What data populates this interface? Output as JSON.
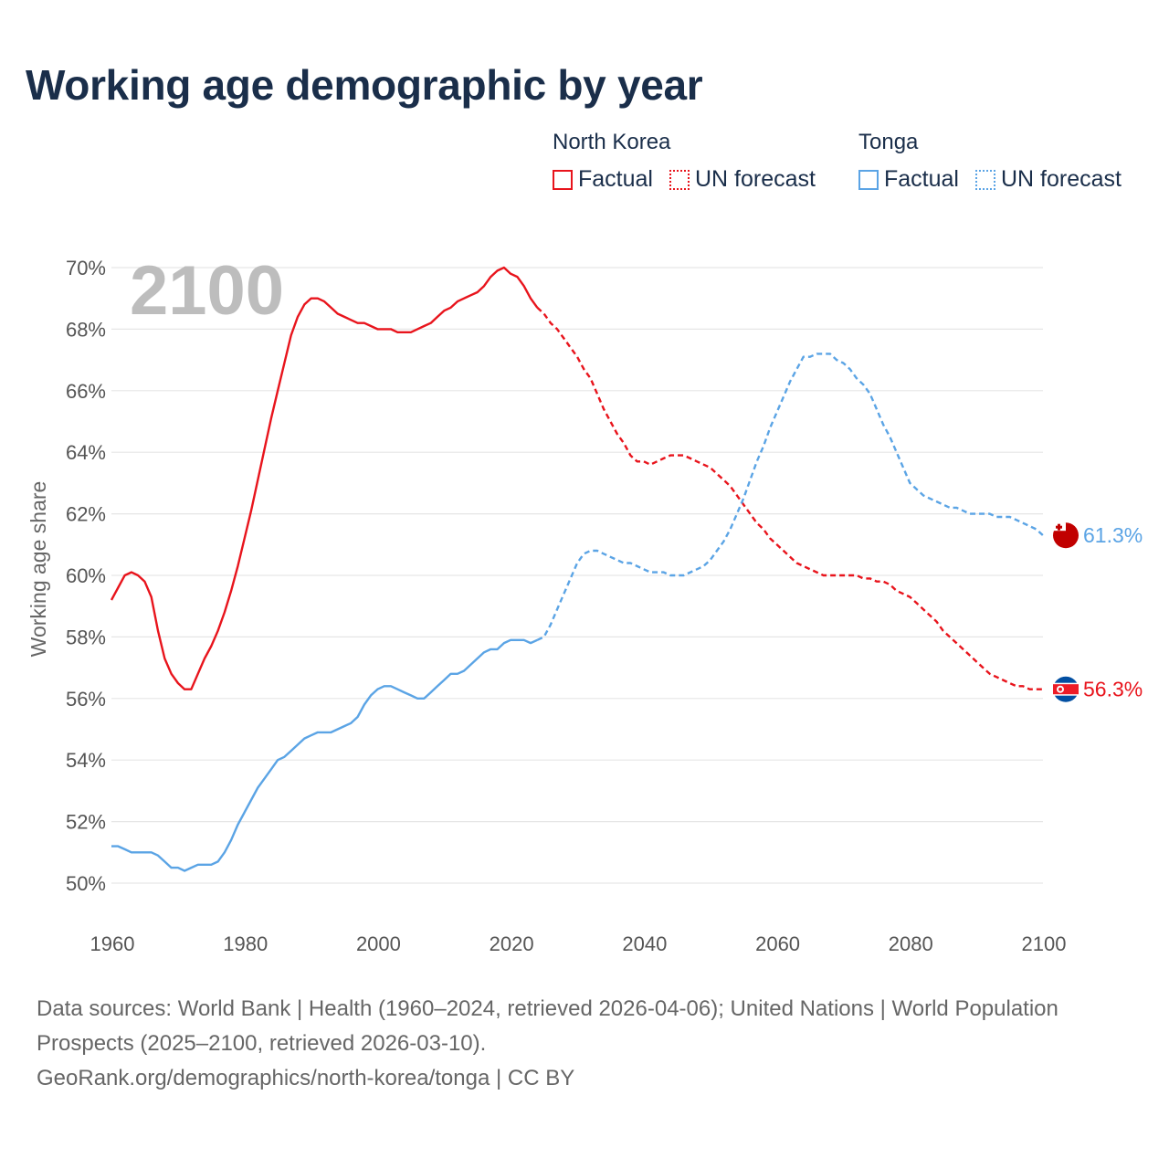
{
  "title": "Working age demographic by year",
  "legend": {
    "factual_label": "Factual",
    "forecast_label": "UN forecast"
  },
  "footer": {
    "line1": "Data sources: World Bank | Health (1960–2024, retrieved 2026-04-06); United Nations | World Population Prospects (2025–2100, retrieved 2026-03-10).",
    "line2": "GeoRank.org/demographics/north-korea/tonga | CC BY"
  },
  "chart_data": {
    "type": "line",
    "title": "Working age demographic by year",
    "ylabel": "Working age share",
    "xlabel": "",
    "year_display": "2100",
    "xlim": [
      1960,
      2100
    ],
    "ylim": [
      50,
      70
    ],
    "x_ticks": [
      1960,
      1980,
      2000,
      2020,
      2040,
      2060,
      2080,
      2100
    ],
    "y_ticks": [
      50,
      52,
      54,
      56,
      58,
      60,
      62,
      64,
      66,
      68,
      70
    ],
    "y_tick_labels": [
      "50%",
      "52%",
      "54%",
      "56%",
      "58%",
      "60%",
      "62%",
      "64%",
      "66%",
      "68%",
      "70%"
    ],
    "factual_range": [
      1960,
      2024
    ],
    "forecast_range": [
      2025,
      2100
    ],
    "series": [
      {
        "name": "North Korea",
        "color": "#e8141c",
        "end_label": "56.3%",
        "points": [
          [
            1960,
            59.2
          ],
          [
            1961,
            59.6
          ],
          [
            1962,
            60.0
          ],
          [
            1963,
            60.1
          ],
          [
            1964,
            60.0
          ],
          [
            1965,
            59.8
          ],
          [
            1966,
            59.3
          ],
          [
            1967,
            58.2
          ],
          [
            1968,
            57.3
          ],
          [
            1969,
            56.8
          ],
          [
            1970,
            56.5
          ],
          [
            1971,
            56.3
          ],
          [
            1972,
            56.3
          ],
          [
            1973,
            56.8
          ],
          [
            1974,
            57.3
          ],
          [
            1975,
            57.7
          ],
          [
            1976,
            58.2
          ],
          [
            1977,
            58.8
          ],
          [
            1978,
            59.5
          ],
          [
            1979,
            60.3
          ],
          [
            1980,
            61.2
          ],
          [
            1981,
            62.1
          ],
          [
            1982,
            63.1
          ],
          [
            1983,
            64.1
          ],
          [
            1984,
            65.1
          ],
          [
            1985,
            66.0
          ],
          [
            1986,
            66.9
          ],
          [
            1987,
            67.8
          ],
          [
            1988,
            68.4
          ],
          [
            1989,
            68.8
          ],
          [
            1990,
            69.0
          ],
          [
            1991,
            69.0
          ],
          [
            1992,
            68.9
          ],
          [
            1993,
            68.7
          ],
          [
            1994,
            68.5
          ],
          [
            1995,
            68.4
          ],
          [
            1996,
            68.3
          ],
          [
            1997,
            68.2
          ],
          [
            1998,
            68.2
          ],
          [
            1999,
            68.1
          ],
          [
            2000,
            68.0
          ],
          [
            2001,
            68.0
          ],
          [
            2002,
            68.0
          ],
          [
            2003,
            67.9
          ],
          [
            2004,
            67.9
          ],
          [
            2005,
            67.9
          ],
          [
            2006,
            68.0
          ],
          [
            2007,
            68.1
          ],
          [
            2008,
            68.2
          ],
          [
            2009,
            68.4
          ],
          [
            2010,
            68.6
          ],
          [
            2011,
            68.7
          ],
          [
            2012,
            68.9
          ],
          [
            2013,
            69.0
          ],
          [
            2014,
            69.1
          ],
          [
            2015,
            69.2
          ],
          [
            2016,
            69.4
          ],
          [
            2017,
            69.7
          ],
          [
            2018,
            69.9
          ],
          [
            2019,
            70.0
          ],
          [
            2020,
            69.8
          ],
          [
            2021,
            69.7
          ],
          [
            2022,
            69.4
          ],
          [
            2023,
            69.0
          ],
          [
            2024,
            68.7
          ],
          [
            2025,
            68.5
          ],
          [
            2026,
            68.2
          ],
          [
            2027,
            68.0
          ],
          [
            2028,
            67.7
          ],
          [
            2029,
            67.4
          ],
          [
            2030,
            67.1
          ],
          [
            2031,
            66.7
          ],
          [
            2032,
            66.4
          ],
          [
            2033,
            65.9
          ],
          [
            2034,
            65.4
          ],
          [
            2035,
            65.0
          ],
          [
            2036,
            64.6
          ],
          [
            2037,
            64.3
          ],
          [
            2038,
            63.9
          ],
          [
            2039,
            63.7
          ],
          [
            2040,
            63.7
          ],
          [
            2041,
            63.6
          ],
          [
            2042,
            63.7
          ],
          [
            2043,
            63.8
          ],
          [
            2044,
            63.9
          ],
          [
            2045,
            63.9
          ],
          [
            2046,
            63.9
          ],
          [
            2047,
            63.8
          ],
          [
            2048,
            63.7
          ],
          [
            2049,
            63.6
          ],
          [
            2050,
            63.5
          ],
          [
            2051,
            63.3
          ],
          [
            2052,
            63.1
          ],
          [
            2053,
            62.9
          ],
          [
            2054,
            62.6
          ],
          [
            2055,
            62.3
          ],
          [
            2056,
            62.0
          ],
          [
            2057,
            61.7
          ],
          [
            2058,
            61.5
          ],
          [
            2059,
            61.2
          ],
          [
            2060,
            61.0
          ],
          [
            2061,
            60.8
          ],
          [
            2062,
            60.6
          ],
          [
            2063,
            60.4
          ],
          [
            2064,
            60.3
          ],
          [
            2065,
            60.2
          ],
          [
            2066,
            60.1
          ],
          [
            2067,
            60.0
          ],
          [
            2068,
            60.0
          ],
          [
            2069,
            60.0
          ],
          [
            2070,
            60.0
          ],
          [
            2071,
            60.0
          ],
          [
            2072,
            60.0
          ],
          [
            2073,
            59.9
          ],
          [
            2074,
            59.9
          ],
          [
            2075,
            59.8
          ],
          [
            2076,
            59.8
          ],
          [
            2077,
            59.7
          ],
          [
            2078,
            59.5
          ],
          [
            2079,
            59.4
          ],
          [
            2080,
            59.3
          ],
          [
            2081,
            59.1
          ],
          [
            2082,
            58.9
          ],
          [
            2083,
            58.7
          ],
          [
            2084,
            58.5
          ],
          [
            2085,
            58.2
          ],
          [
            2086,
            58.0
          ],
          [
            2087,
            57.8
          ],
          [
            2088,
            57.6
          ],
          [
            2089,
            57.4
          ],
          [
            2090,
            57.2
          ],
          [
            2091,
            57.0
          ],
          [
            2092,
            56.8
          ],
          [
            2093,
            56.7
          ],
          [
            2094,
            56.6
          ],
          [
            2095,
            56.5
          ],
          [
            2096,
            56.4
          ],
          [
            2097,
            56.4
          ],
          [
            2098,
            56.3
          ],
          [
            2099,
            56.3
          ],
          [
            2100,
            56.3
          ]
        ]
      },
      {
        "name": "Tonga",
        "color": "#5ba4e5",
        "end_label": "61.3%",
        "points": [
          [
            1960,
            51.2
          ],
          [
            1961,
            51.2
          ],
          [
            1962,
            51.1
          ],
          [
            1963,
            51.0
          ],
          [
            1964,
            51.0
          ],
          [
            1965,
            51.0
          ],
          [
            1966,
            51.0
          ],
          [
            1967,
            50.9
          ],
          [
            1968,
            50.7
          ],
          [
            1969,
            50.5
          ],
          [
            1970,
            50.5
          ],
          [
            1971,
            50.4
          ],
          [
            1972,
            50.5
          ],
          [
            1973,
            50.6
          ],
          [
            1974,
            50.6
          ],
          [
            1975,
            50.6
          ],
          [
            1976,
            50.7
          ],
          [
            1977,
            51.0
          ],
          [
            1978,
            51.4
          ],
          [
            1979,
            51.9
          ],
          [
            1980,
            52.3
          ],
          [
            1981,
            52.7
          ],
          [
            1982,
            53.1
          ],
          [
            1983,
            53.4
          ],
          [
            1984,
            53.7
          ],
          [
            1985,
            54.0
          ],
          [
            1986,
            54.1
          ],
          [
            1987,
            54.3
          ],
          [
            1988,
            54.5
          ],
          [
            1989,
            54.7
          ],
          [
            1990,
            54.8
          ],
          [
            1991,
            54.9
          ],
          [
            1992,
            54.9
          ],
          [
            1993,
            54.9
          ],
          [
            1994,
            55.0
          ],
          [
            1995,
            55.1
          ],
          [
            1996,
            55.2
          ],
          [
            1997,
            55.4
          ],
          [
            1998,
            55.8
          ],
          [
            1999,
            56.1
          ],
          [
            2000,
            56.3
          ],
          [
            2001,
            56.4
          ],
          [
            2002,
            56.4
          ],
          [
            2003,
            56.3
          ],
          [
            2004,
            56.2
          ],
          [
            2005,
            56.1
          ],
          [
            2006,
            56.0
          ],
          [
            2007,
            56.0
          ],
          [
            2008,
            56.2
          ],
          [
            2009,
            56.4
          ],
          [
            2010,
            56.6
          ],
          [
            2011,
            56.8
          ],
          [
            2012,
            56.8
          ],
          [
            2013,
            56.9
          ],
          [
            2014,
            57.1
          ],
          [
            2015,
            57.3
          ],
          [
            2016,
            57.5
          ],
          [
            2017,
            57.6
          ],
          [
            2018,
            57.6
          ],
          [
            2019,
            57.8
          ],
          [
            2020,
            57.9
          ],
          [
            2021,
            57.9
          ],
          [
            2022,
            57.9
          ],
          [
            2023,
            57.8
          ],
          [
            2024,
            57.9
          ],
          [
            2025,
            58.0
          ],
          [
            2026,
            58.4
          ],
          [
            2027,
            58.9
          ],
          [
            2028,
            59.4
          ],
          [
            2029,
            59.9
          ],
          [
            2030,
            60.4
          ],
          [
            2031,
            60.7
          ],
          [
            2032,
            60.8
          ],
          [
            2033,
            60.8
          ],
          [
            2034,
            60.7
          ],
          [
            2035,
            60.6
          ],
          [
            2036,
            60.5
          ],
          [
            2037,
            60.4
          ],
          [
            2038,
            60.4
          ],
          [
            2039,
            60.3
          ],
          [
            2040,
            60.2
          ],
          [
            2041,
            60.1
          ],
          [
            2042,
            60.1
          ],
          [
            2043,
            60.1
          ],
          [
            2044,
            60.0
          ],
          [
            2045,
            60.0
          ],
          [
            2046,
            60.0
          ],
          [
            2047,
            60.1
          ],
          [
            2048,
            60.2
          ],
          [
            2049,
            60.3
          ],
          [
            2050,
            60.5
          ],
          [
            2051,
            60.8
          ],
          [
            2052,
            61.1
          ],
          [
            2053,
            61.5
          ],
          [
            2054,
            62.0
          ],
          [
            2055,
            62.5
          ],
          [
            2056,
            63.1
          ],
          [
            2057,
            63.7
          ],
          [
            2058,
            64.2
          ],
          [
            2059,
            64.8
          ],
          [
            2060,
            65.3
          ],
          [
            2061,
            65.8
          ],
          [
            2062,
            66.3
          ],
          [
            2063,
            66.7
          ],
          [
            2064,
            67.1
          ],
          [
            2065,
            67.1
          ],
          [
            2066,
            67.2
          ],
          [
            2067,
            67.2
          ],
          [
            2068,
            67.2
          ],
          [
            2069,
            67.0
          ],
          [
            2070,
            66.9
          ],
          [
            2071,
            66.7
          ],
          [
            2072,
            66.4
          ],
          [
            2073,
            66.2
          ],
          [
            2074,
            65.9
          ],
          [
            2075,
            65.4
          ],
          [
            2076,
            64.9
          ],
          [
            2077,
            64.5
          ],
          [
            2078,
            64.0
          ],
          [
            2079,
            63.5
          ],
          [
            2080,
            63.0
          ],
          [
            2081,
            62.8
          ],
          [
            2082,
            62.6
          ],
          [
            2083,
            62.5
          ],
          [
            2084,
            62.4
          ],
          [
            2085,
            62.3
          ],
          [
            2086,
            62.2
          ],
          [
            2087,
            62.2
          ],
          [
            2088,
            62.1
          ],
          [
            2089,
            62.0
          ],
          [
            2090,
            62.0
          ],
          [
            2091,
            62.0
          ],
          [
            2092,
            62.0
          ],
          [
            2093,
            61.9
          ],
          [
            2094,
            61.9
          ],
          [
            2095,
            61.9
          ],
          [
            2096,
            61.8
          ],
          [
            2097,
            61.7
          ],
          [
            2098,
            61.6
          ],
          [
            2099,
            61.5
          ],
          [
            2100,
            61.3
          ]
        ]
      }
    ]
  }
}
